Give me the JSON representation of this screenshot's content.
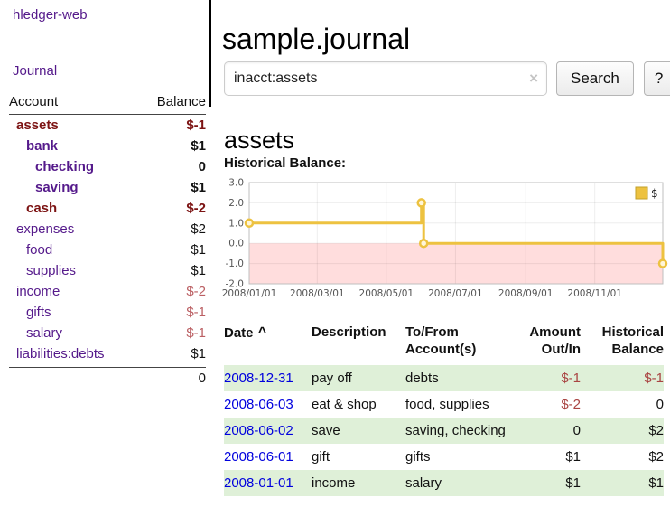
{
  "app": {
    "brand": "hledger-web",
    "nav_journal": "Journal"
  },
  "colors": {
    "link_purple": "#551a8b",
    "link_blue": "#0000dd",
    "negative_dark": "#7c1313",
    "negative_soft": "#bb5f63",
    "table_negative": "#a94442",
    "row_green": "#dff0d8",
    "chart_line": "#edc240",
    "chart_negative_region": "#ffdddd"
  },
  "sidebar": {
    "header": {
      "account": "Account",
      "balance": "Balance"
    },
    "accounts": [
      {
        "name": "assets",
        "balance": "$-1"
      },
      {
        "name": "bank",
        "balance": "$1"
      },
      {
        "name": "checking",
        "balance": "0"
      },
      {
        "name": "saving",
        "balance": "$1"
      },
      {
        "name": "cash",
        "balance": "$-2"
      },
      {
        "name": "expenses",
        "balance": "$2"
      },
      {
        "name": "food",
        "balance": "$1"
      },
      {
        "name": "supplies",
        "balance": "$1"
      },
      {
        "name": "income",
        "balance": "$-2"
      },
      {
        "name": "gifts",
        "balance": "$-1"
      },
      {
        "name": "salary",
        "balance": "$-1"
      },
      {
        "name": "liabilities:debts",
        "balance": "$1"
      }
    ],
    "total": "0"
  },
  "header": {
    "title": "sample.journal"
  },
  "search": {
    "value": "inacct:assets",
    "clear_icon": "×",
    "button_label": "Search",
    "help_label": "?"
  },
  "account_page": {
    "title": "assets",
    "chart_label": "Historical Balance:"
  },
  "chart_data": {
    "type": "line",
    "subtype": "step",
    "title": "Historical Balance",
    "series": [
      {
        "name": "$",
        "color": "#edc240",
        "points": [
          {
            "date": "2008-01-01",
            "value": 1
          },
          {
            "date": "2008-06-01",
            "value": 2
          },
          {
            "date": "2008-06-03",
            "value": 0
          },
          {
            "date": "2008-12-31",
            "value": -1
          }
        ]
      }
    ],
    "x_range": [
      "2008-01-01",
      "2008-12-31"
    ],
    "x_ticks": [
      "2008/01/01",
      "2008/03/01",
      "2008/05/01",
      "2008/07/01",
      "2008/09/01",
      "2008/11/01"
    ],
    "y_ticks": [
      3,
      2,
      1,
      0,
      -1,
      -2
    ],
    "y_range": [
      -2,
      3
    ],
    "grid": true,
    "negative_region_color": "#ffdddd",
    "legend": {
      "label": "$",
      "position": "top-right"
    }
  },
  "register": {
    "columns": {
      "date": {
        "label": "Date",
        "sort_icon": "^"
      },
      "description": {
        "label": "Description"
      },
      "tofrom": {
        "l1": "To/From",
        "l2": "Account(s)"
      },
      "amount": {
        "l1": "Amount",
        "l2": "Out/In"
      },
      "balance": {
        "l1": "Historical",
        "l2": "Balance"
      }
    },
    "rows": [
      {
        "date": "2008-12-31",
        "description": "pay off",
        "tofrom": "debts",
        "amount": "$-1",
        "balance": "$-1"
      },
      {
        "date": "2008-06-03",
        "description": "eat & shop",
        "tofrom": "food, supplies",
        "amount": "$-2",
        "balance": "0"
      },
      {
        "date": "2008-06-02",
        "description": "save",
        "tofrom": "saving, checking",
        "amount": "0",
        "balance": "$2"
      },
      {
        "date": "2008-06-01",
        "description": "gift",
        "tofrom": "gifts",
        "amount": "$1",
        "balance": "$2"
      },
      {
        "date": "2008-01-01",
        "description": "income",
        "tofrom": "salary",
        "amount": "$1",
        "balance": "$1"
      }
    ]
  }
}
